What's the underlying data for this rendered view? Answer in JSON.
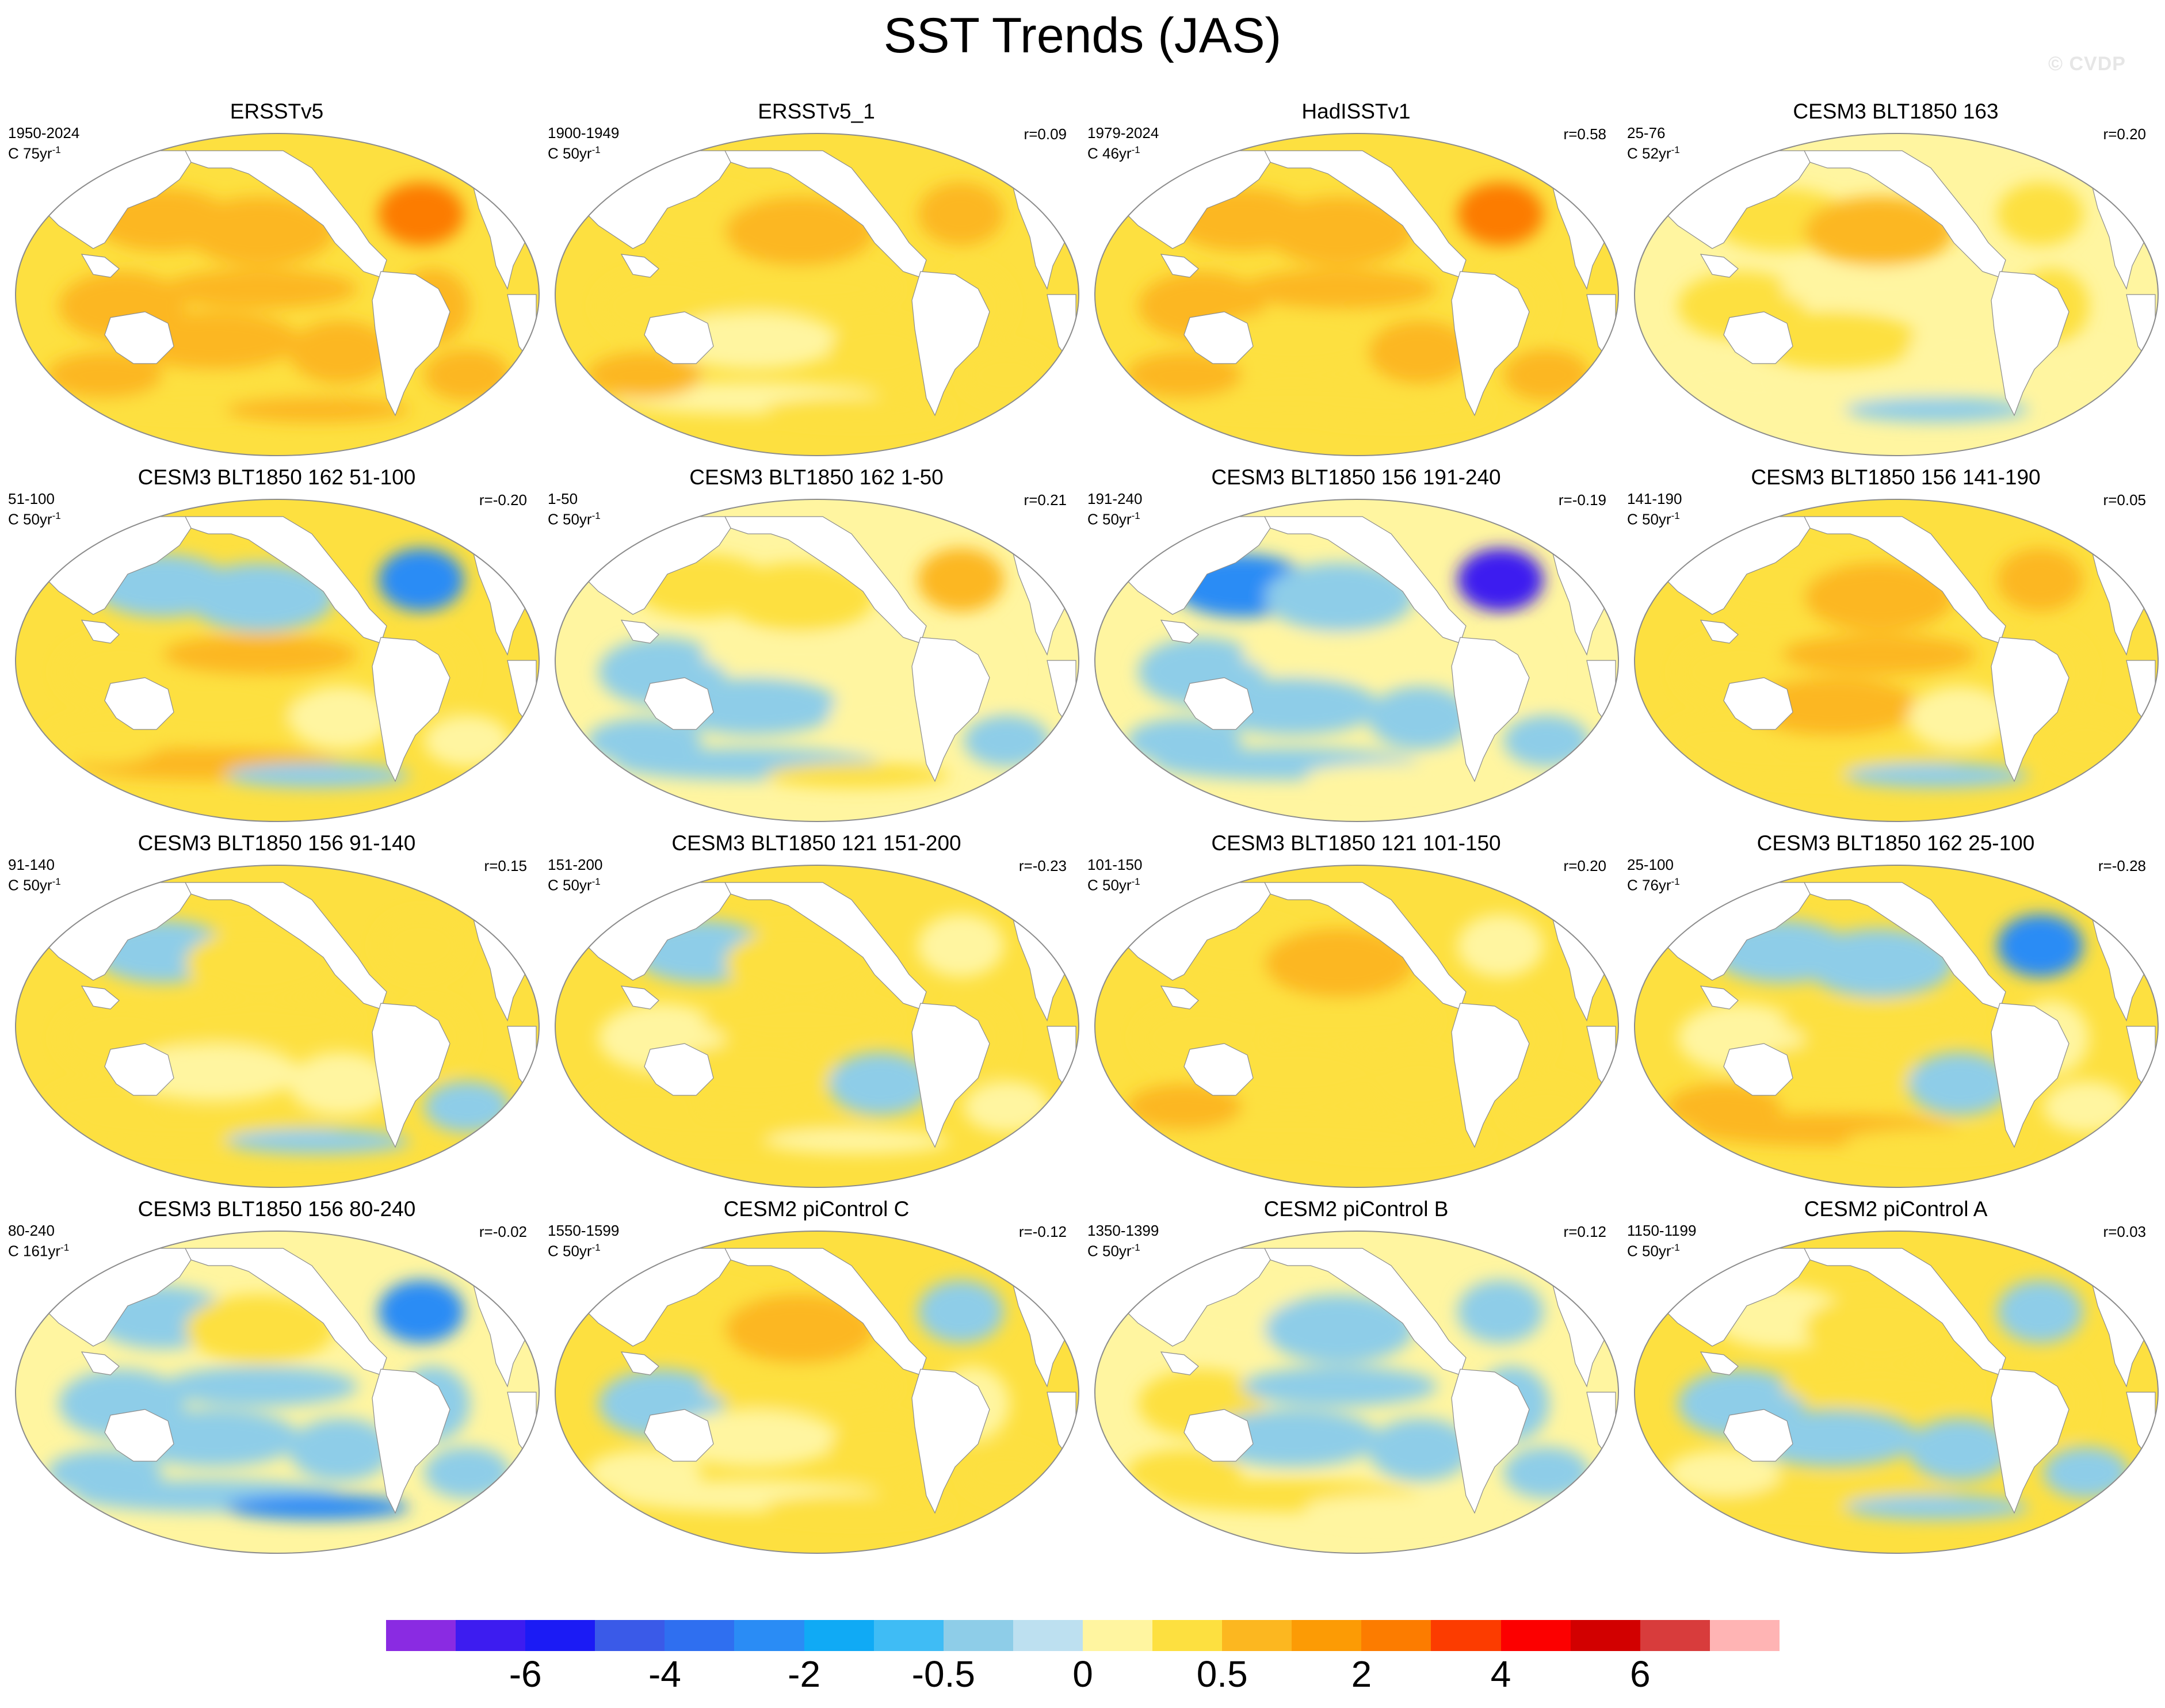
{
  "title": "SST Trends (JAS)",
  "watermark": "© CVDP",
  "legend": {
    "colors": [
      "#8a2be2",
      "#3d1cf0",
      "#1b1bf5",
      "#3a5ae8",
      "#2f6ff0",
      "#2a8cf5",
      "#10aaf5",
      "#3fbcf5",
      "#8ecde8",
      "#bde0f0",
      "#fff5a0",
      "#fde040",
      "#fcb720",
      "#fc9b05",
      "#fc7c00",
      "#fc3c00",
      "#fc0000",
      "#d20000",
      "#d83c3c",
      "#ffb4b4"
    ],
    "labels": [
      "-6",
      "-4",
      "-2",
      "-0.5",
      "0",
      "0.5",
      "2",
      "4",
      "6"
    ],
    "label_boundaries": [
      2,
      4,
      6,
      8,
      10,
      12,
      14,
      16,
      18
    ]
  },
  "panels": [
    {
      "title": "ERSSTv5",
      "period": "1950-2024",
      "scale": "C 75yr",
      "r": "",
      "pattern": [
        2,
        2,
        3,
        2,
        2,
        2,
        2,
        2,
        2,
        1,
        2,
        2
      ]
    },
    {
      "title": "ERSSTv5_1",
      "period": "1900-1949",
      "scale": "C 50yr",
      "r": "r=0.09",
      "pattern": [
        1,
        2,
        2,
        1,
        1,
        0,
        1,
        1,
        1,
        0,
        1,
        2
      ]
    },
    {
      "title": "HadISSTv1",
      "period": "1979-2024",
      "scale": "C 46yr",
      "r": "r=0.58",
      "pattern": [
        2,
        2,
        3,
        2,
        2,
        1,
        2,
        1,
        2,
        1,
        1,
        2
      ]
    },
    {
      "title": "CESM3 BLT1850 163",
      "period": "25-76",
      "scale": "C 52yr",
      "r": "r=0.20",
      "pattern": [
        1,
        2,
        1,
        1,
        0,
        1,
        0,
        1,
        0,
        0,
        -1,
        0
      ]
    },
    {
      "title": "CESM3 BLT1850 162 51-100",
      "period": "51-100",
      "scale": "C 50yr",
      "r": "r=-0.20",
      "pattern": [
        -1,
        -1,
        -2,
        1,
        2,
        1,
        0,
        1,
        0,
        2,
        -1,
        1
      ]
    },
    {
      "title": "CESM3 BLT1850 162 1-50",
      "period": "1-50",
      "scale": "C 50yr",
      "r": "r=0.21",
      "pattern": [
        1,
        1,
        2,
        -1,
        0,
        -1,
        0,
        0,
        -1,
        -1,
        1,
        -1
      ]
    },
    {
      "title": "CESM3 BLT1850 156 191-240",
      "period": "191-240",
      "scale": "C 50yr",
      "r": "r=-0.19",
      "pattern": [
        -2,
        -1,
        -3,
        -1,
        0,
        -1,
        -1,
        0,
        -1,
        -1,
        0,
        -1
      ]
    },
    {
      "title": "CESM3 BLT1850 156 141-190",
      "period": "141-190",
      "scale": "C 50yr",
      "r": "r=0.05",
      "pattern": [
        1,
        2,
        2,
        1,
        2,
        2,
        0,
        1,
        1,
        1,
        -1,
        1
      ]
    },
    {
      "title": "CESM3 BLT1850 156 91-140",
      "period": "91-140",
      "scale": "C 50yr",
      "r": "r=0.15",
      "pattern": [
        -1,
        1,
        1,
        1,
        1,
        0,
        0,
        1,
        -1,
        1,
        -1,
        1
      ]
    },
    {
      "title": "CESM3 BLT1850 121 151-200",
      "period": "151-200",
      "scale": "C 50yr",
      "r": "r=-0.23",
      "pattern": [
        -1,
        1,
        0,
        0,
        1,
        1,
        -1,
        1,
        0,
        1,
        0,
        1
      ]
    },
    {
      "title": "CESM3 BLT1850 121 101-150",
      "period": "101-150",
      "scale": "C 50yr",
      "r": "r=0.20",
      "pattern": [
        1,
        2,
        0,
        1,
        1,
        1,
        1,
        1,
        1,
        1,
        1,
        2
      ]
    },
    {
      "title": "CESM3 BLT1850 162 25-100",
      "period": "25-100",
      "scale": "C 76yr",
      "r": "r=-0.28",
      "pattern": [
        -1,
        -1,
        -2,
        0,
        1,
        1,
        -1,
        0,
        0,
        2,
        1,
        2
      ]
    },
    {
      "title": "CESM3 BLT1850 156 80-240",
      "period": "80-240",
      "scale": "C 161yr",
      "r": "r=-0.02",
      "pattern": [
        -1,
        1,
        -2,
        -1,
        -1,
        -1,
        -1,
        -1,
        -1,
        -1,
        -2,
        -1
      ]
    },
    {
      "title": "CESM2 piControl C",
      "period": "1550-1599",
      "scale": "C 50yr",
      "r": "r=-0.12",
      "pattern": [
        1,
        2,
        -1,
        -1,
        1,
        0,
        1,
        0,
        1,
        0,
        1,
        0
      ]
    },
    {
      "title": "CESM2 piControl B",
      "period": "1350-1399",
      "scale": "C 50yr",
      "r": "r=0.12",
      "pattern": [
        0,
        -1,
        -1,
        1,
        -1,
        -1,
        -1,
        -1,
        -1,
        1,
        0,
        1
      ]
    },
    {
      "title": "CESM2 piControl A",
      "period": "1150-1199",
      "scale": "C 50yr",
      "r": "r=0.03",
      "pattern": [
        0,
        1,
        -1,
        -1,
        1,
        -1,
        -1,
        1,
        -1,
        1,
        -1,
        0
      ]
    }
  ]
}
